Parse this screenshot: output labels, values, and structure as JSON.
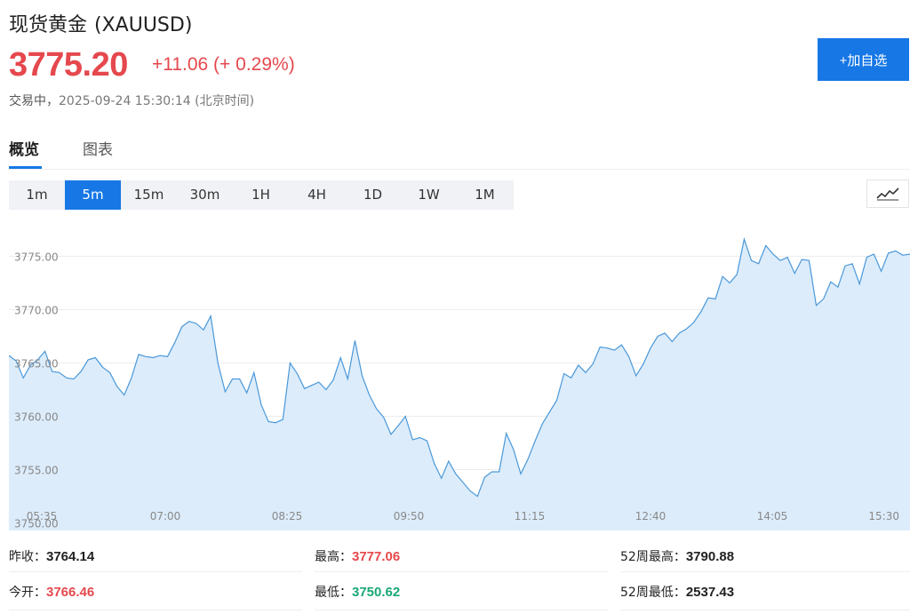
{
  "header": {
    "name": "现货黄金",
    "code": "(XAUUSD)",
    "price": "3775.20",
    "change": "+11.06 (+ 0.29%)",
    "status": "交易中，",
    "time": "2025-09-24 15:30:14",
    "timezone": "(北京时间)",
    "add_button": "+加自选"
  },
  "tabs": [
    "概览",
    "图表"
  ],
  "periods": [
    "1m",
    "5m",
    "15m",
    "30m",
    "1H",
    "4H",
    "1D",
    "1W",
    "1M"
  ],
  "active_period": "5m",
  "chart_toggle_icon": "line-chart-icon",
  "colors": {
    "accent": "#1677e5",
    "up": "#e5484d",
    "down": "#19a874",
    "line": "#4a98d9",
    "fill": "#dcecfb"
  },
  "chart_data": {
    "type": "area",
    "y_tick_labels": [
      "3775.00",
      "3770.00",
      "3765.00",
      "3760.00",
      "3755.00",
      "3750.00"
    ],
    "y_ticks": [
      3775,
      3770,
      3765,
      3760,
      3755,
      3750
    ],
    "x_tick_labels": [
      "05:35",
      "07:00",
      "08:25",
      "09:50",
      "11:15",
      "12:40",
      "14:05",
      "15:30"
    ],
    "ylim": [
      3749.3,
      3778.2
    ],
    "grid": true,
    "values": [
      3765.7,
      3765.2,
      3763.6,
      3764.8,
      3765.3,
      3766.1,
      3764.2,
      3764.1,
      3763.6,
      3763.5,
      3764.2,
      3765.3,
      3765.5,
      3764.6,
      3764.1,
      3762.8,
      3762.0,
      3763.6,
      3765.8,
      3765.6,
      3765.5,
      3765.7,
      3765.6,
      3766.9,
      3768.4,
      3768.9,
      3768.7,
      3768.1,
      3769.4,
      3765.0,
      3762.3,
      3763.5,
      3763.5,
      3762.2,
      3764.1,
      3761.1,
      3759.5,
      3759.4,
      3759.7,
      3765.0,
      3764.0,
      3762.6,
      3762.9,
      3763.2,
      3762.5,
      3763.4,
      3765.5,
      3763.5,
      3767.1,
      3763.8,
      3762.0,
      3760.7,
      3759.9,
      3758.3,
      3759.1,
      3760.0,
      3757.8,
      3758.0,
      3757.7,
      3755.6,
      3754.2,
      3755.8,
      3754.6,
      3753.8,
      3753.0,
      3752.5,
      3754.3,
      3754.8,
      3754.8,
      3758.4,
      3756.9,
      3754.6,
      3756.0,
      3757.7,
      3759.3,
      3760.4,
      3761.5,
      3764.0,
      3763.6,
      3764.8,
      3764.1,
      3764.9,
      3766.5,
      3766.4,
      3766.2,
      3766.7,
      3765.6,
      3763.8,
      3764.9,
      3766.4,
      3767.5,
      3767.8,
      3767.0,
      3767.8,
      3768.2,
      3768.8,
      3769.8,
      3771.1,
      3771.0,
      3773.1,
      3772.5,
      3773.3,
      3776.6,
      3774.6,
      3774.3,
      3776.0,
      3775.2,
      3774.6,
      3774.9,
      3773.4,
      3774.7,
      3774.6,
      3770.4,
      3771.0,
      3772.6,
      3772.1,
      3774.1,
      3774.3,
      3772.4,
      3774.9,
      3775.2,
      3773.6,
      3775.3,
      3775.5,
      3775.1,
      3775.2
    ]
  },
  "stats": {
    "prev_close_label": "昨收：",
    "prev_close": "3764.14",
    "open_label": "今开：",
    "open": "3766.46",
    "high_label": "最高：",
    "high": "3777.06",
    "low_label": "最低：",
    "low": "3750.62",
    "wk52_high_label": "52周最高：",
    "wk52_high": "3790.88",
    "wk52_low_label": "52周最低：",
    "wk52_low": "2537.43"
  }
}
